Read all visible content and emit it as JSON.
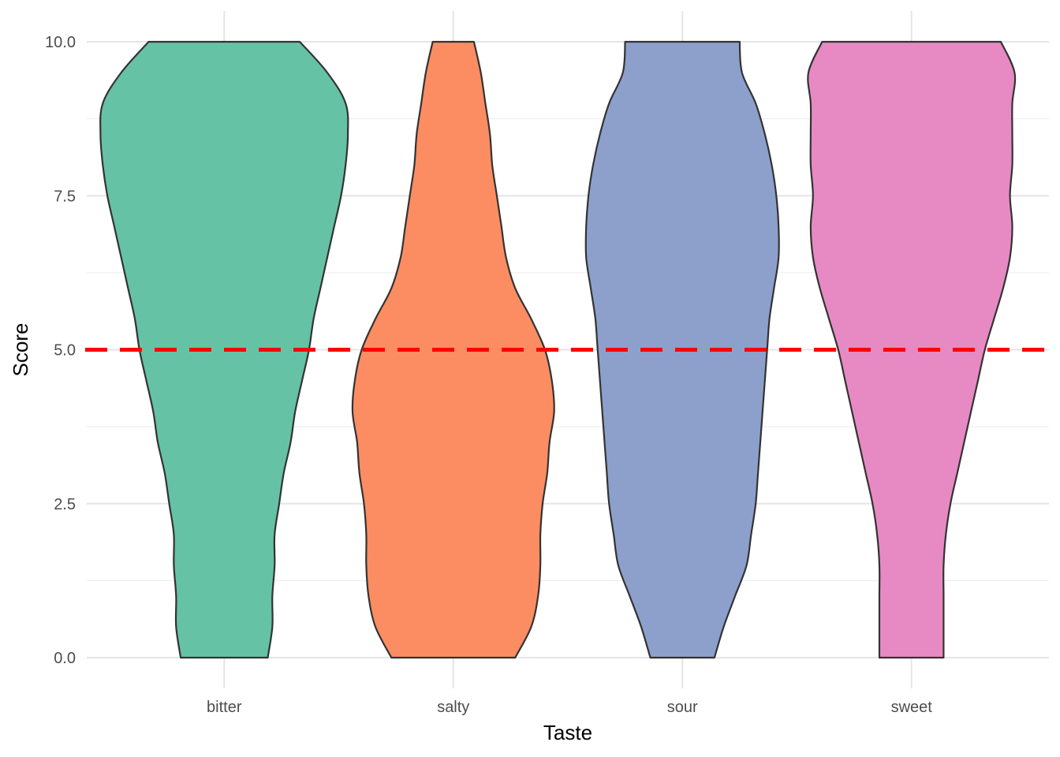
{
  "chart_data": {
    "type": "violin",
    "title": "",
    "xlabel": "Taste",
    "ylabel": "Score",
    "categories": [
      "bitter",
      "salty",
      "sour",
      "sweet"
    ],
    "ylim": [
      0,
      10
    ],
    "y_ticks": [
      "0.0",
      "2.5",
      "5.0",
      "7.5",
      "10.0"
    ],
    "y_tick_values": [
      0,
      2.5,
      5,
      7.5,
      10
    ],
    "grid": true,
    "legend": "none",
    "reference_line": {
      "y": 5,
      "style": "dashed",
      "color": "#ff0000"
    },
    "colors": [
      "#66c2a5",
      "#fc8d62",
      "#8da0cb",
      "#e78ac3"
    ],
    "outline_color": "#333333",
    "series": [
      {
        "category": "bitter",
        "density_y": [
          0,
          0.5,
          1,
          1.5,
          2,
          2.5,
          3,
          3.5,
          4,
          4.5,
          5,
          5.5,
          6,
          6.5,
          7,
          7.5,
          8,
          8.5,
          9,
          9.5,
          10
        ],
        "half_width": [
          0.19,
          0.21,
          0.21,
          0.22,
          0.22,
          0.24,
          0.26,
          0.29,
          0.31,
          0.34,
          0.37,
          0.39,
          0.42,
          0.45,
          0.48,
          0.51,
          0.53,
          0.54,
          0.53,
          0.45,
          0.33
        ]
      },
      {
        "category": "salty",
        "density_y": [
          0,
          0.5,
          1,
          1.5,
          2,
          2.5,
          3,
          3.5,
          4,
          4.5,
          5,
          5.5,
          6,
          6.5,
          7,
          7.5,
          8,
          8.5,
          9,
          9.5,
          10
        ],
        "half_width": [
          0.27,
          0.34,
          0.37,
          0.38,
          0.38,
          0.39,
          0.41,
          0.42,
          0.44,
          0.43,
          0.4,
          0.34,
          0.27,
          0.23,
          0.21,
          0.19,
          0.17,
          0.16,
          0.14,
          0.12,
          0.09
        ]
      },
      {
        "category": "sour",
        "density_y": [
          0,
          0.5,
          1,
          1.5,
          2,
          2.5,
          3,
          3.5,
          4,
          4.5,
          5,
          5.5,
          6,
          6.5,
          7,
          7.5,
          8,
          8.5,
          9,
          9.5,
          10
        ],
        "half_width": [
          0.14,
          0.18,
          0.23,
          0.28,
          0.3,
          0.32,
          0.33,
          0.34,
          0.35,
          0.36,
          0.37,
          0.38,
          0.4,
          0.42,
          0.42,
          0.41,
          0.39,
          0.36,
          0.32,
          0.26,
          0.25
        ]
      },
      {
        "category": "sweet",
        "density_y": [
          0,
          0.5,
          1,
          1.5,
          2,
          2.5,
          3,
          3.5,
          4,
          4.5,
          5,
          5.5,
          6,
          6.5,
          7,
          7.5,
          8,
          8.5,
          9,
          9.5,
          10
        ],
        "half_width": [
          0.14,
          0.14,
          0.14,
          0.14,
          0.15,
          0.17,
          0.2,
          0.23,
          0.26,
          0.29,
          0.32,
          0.36,
          0.4,
          0.43,
          0.44,
          0.43,
          0.44,
          0.44,
          0.44,
          0.45,
          0.39
        ]
      }
    ]
  }
}
